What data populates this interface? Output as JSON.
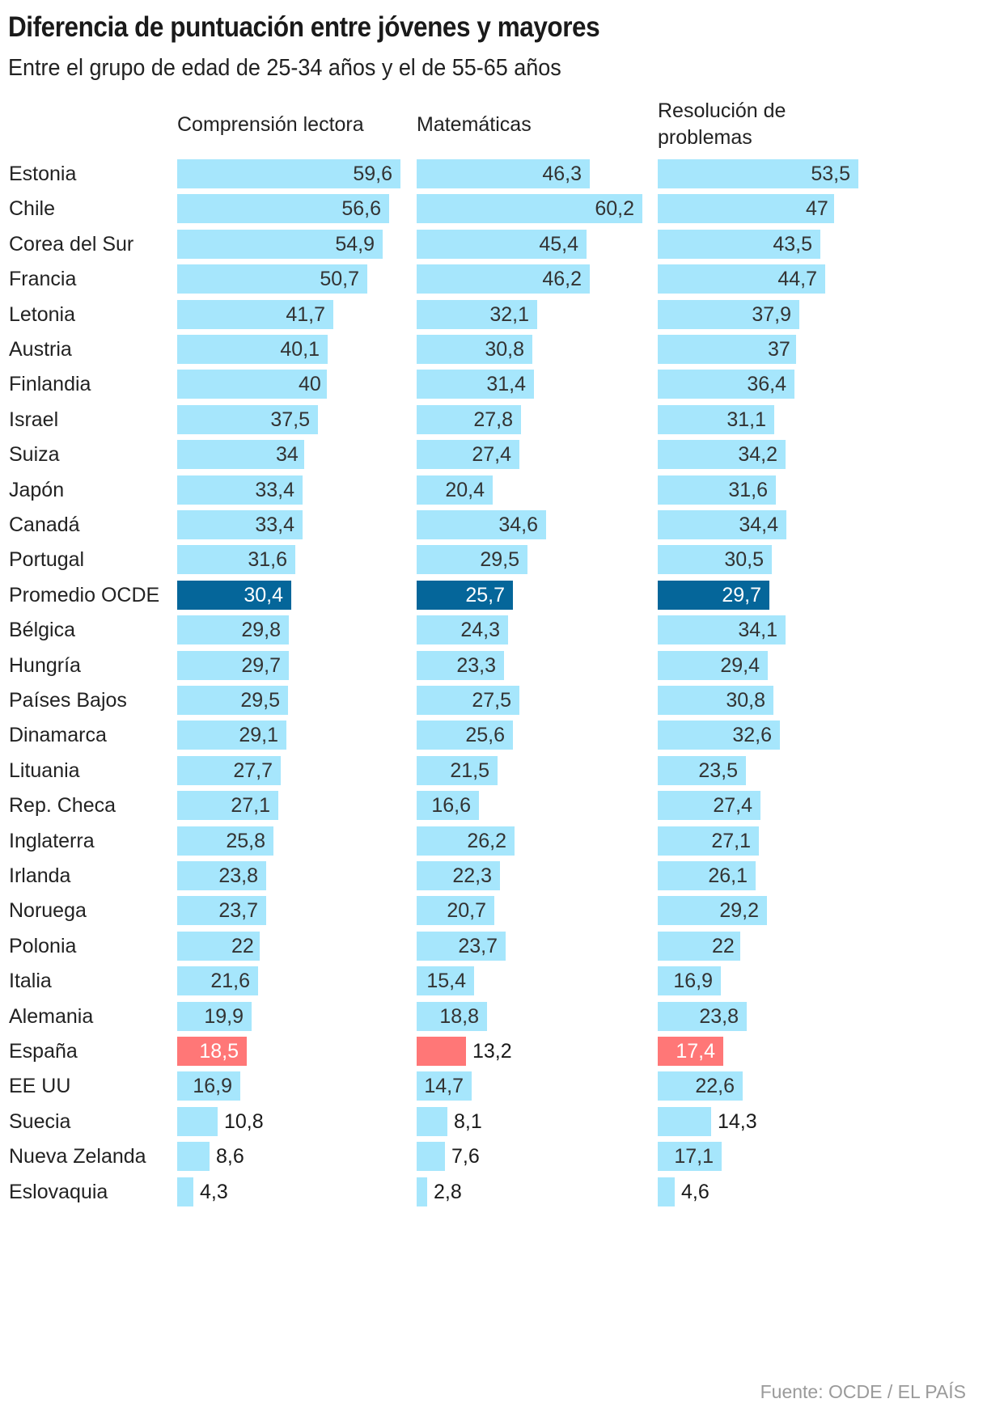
{
  "title": "Diferencia de puntuación entre jóvenes y mayores",
  "subtitle": "Entre el grupo de edad de 25-34 años y el de 55-65 años",
  "source": "Fuente: OCDE / EL PAÍS",
  "colors": {
    "default": "#a6e6fc",
    "average": "#05669a",
    "highlight": "#ff7777"
  },
  "chart_data": {
    "type": "bar",
    "orientation": "horizontal",
    "title": "Diferencia de puntuación entre jóvenes y mayores",
    "subtitle": "Entre el grupo de edad de 25-34 años y el de 55-65 años",
    "categories": [
      "Estonia",
      "Chile",
      "Corea del Sur",
      "Francia",
      "Letonia",
      "Austria",
      "Finlandia",
      "Israel",
      "Suiza",
      "Japón",
      "Canadá",
      "Portugal",
      "Promedio OCDE",
      "Bélgica",
      "Hungría",
      "Países Bajos",
      "Dinamarca",
      "Lituania",
      "Rep. Checa",
      "Inglaterra",
      "Irlanda",
      "Noruega",
      "Polonia",
      "Italia",
      "Alemania",
      "España",
      "EE UU",
      "Suecia",
      "Nueva Zelanda",
      "Eslovaquia"
    ],
    "highlight": {
      "Promedio OCDE": "average",
      "España": "highlight"
    },
    "series": [
      {
        "name": "Comprensión lectora",
        "labels": [
          "59,6",
          "56,6",
          "54,9",
          "50,7",
          "41,7",
          "40,1",
          "40",
          "37,5",
          "34",
          "33,4",
          "33,4",
          "31,6",
          "30,4",
          "29,8",
          "29,7",
          "29,5",
          "29,1",
          "27,7",
          "27,1",
          "25,8",
          "23,8",
          "23,7",
          "22",
          "21,6",
          "19,9",
          "18,5",
          "16,9",
          "10,8",
          "8,6",
          "4,3"
        ],
        "values": [
          59.6,
          56.6,
          54.9,
          50.7,
          41.7,
          40.1,
          40,
          37.5,
          34,
          33.4,
          33.4,
          31.6,
          30.4,
          29.8,
          29.7,
          29.5,
          29.1,
          27.7,
          27.1,
          25.8,
          23.8,
          23.7,
          22,
          21.6,
          19.9,
          18.5,
          16.9,
          10.8,
          8.6,
          4.3
        ]
      },
      {
        "name": "Matemáticas",
        "labels": [
          "46,3",
          "60,2",
          "45,4",
          "46,2",
          "32,1",
          "30,8",
          "31,4",
          "27,8",
          "27,4",
          "20,4",
          "34,6",
          "29,5",
          "25,7",
          "24,3",
          "23,3",
          "27,5",
          "25,6",
          "21,5",
          "16,6",
          "26,2",
          "22,3",
          "20,7",
          "23,7",
          "15,4",
          "18,8",
          "13,2",
          "14,7",
          "8,1",
          "7,6",
          "2,8"
        ],
        "values": [
          46.3,
          60.2,
          45.4,
          46.2,
          32.1,
          30.8,
          31.4,
          27.8,
          27.4,
          20.4,
          34.6,
          29.5,
          25.7,
          24.3,
          23.3,
          27.5,
          25.6,
          21.5,
          16.6,
          26.2,
          22.3,
          20.7,
          23.7,
          15.4,
          18.8,
          13.2,
          14.7,
          8.1,
          7.6,
          2.8
        ]
      },
      {
        "name": "Resolución de problemas",
        "labels": [
          "53,5",
          "47",
          "43,5",
          "44,7",
          "37,9",
          "37",
          "36,4",
          "31,1",
          "34,2",
          "31,6",
          "34,4",
          "30,5",
          "29,7",
          "34,1",
          "29,4",
          "30,8",
          "32,6",
          "23,5",
          "27,4",
          "27,1",
          "26,1",
          "29,2",
          "22",
          "16,9",
          "23,8",
          "17,4",
          "22,6",
          "14,3",
          "17,1",
          "4,6"
        ],
        "values": [
          53.5,
          47,
          43.5,
          44.7,
          37.9,
          37,
          36.4,
          31.1,
          34.2,
          31.6,
          34.4,
          30.5,
          29.7,
          34.1,
          29.4,
          30.8,
          32.6,
          23.5,
          27.4,
          27.1,
          26.1,
          29.2,
          22,
          16.9,
          23.8,
          17.4,
          22.6,
          14.3,
          17.1,
          4.6
        ]
      }
    ],
    "xlabel": "",
    "ylabel": "",
    "xlim": [
      0,
      61
    ],
    "grid": false,
    "legend": "column-headers-top"
  },
  "columns": [
    {
      "header": "Comprensión lectora"
    },
    {
      "header": "Matemáticas"
    },
    {
      "header": "Resolución de\nproblemas",
      "header_lines": [
        "Resolución de",
        "problemas"
      ]
    }
  ]
}
